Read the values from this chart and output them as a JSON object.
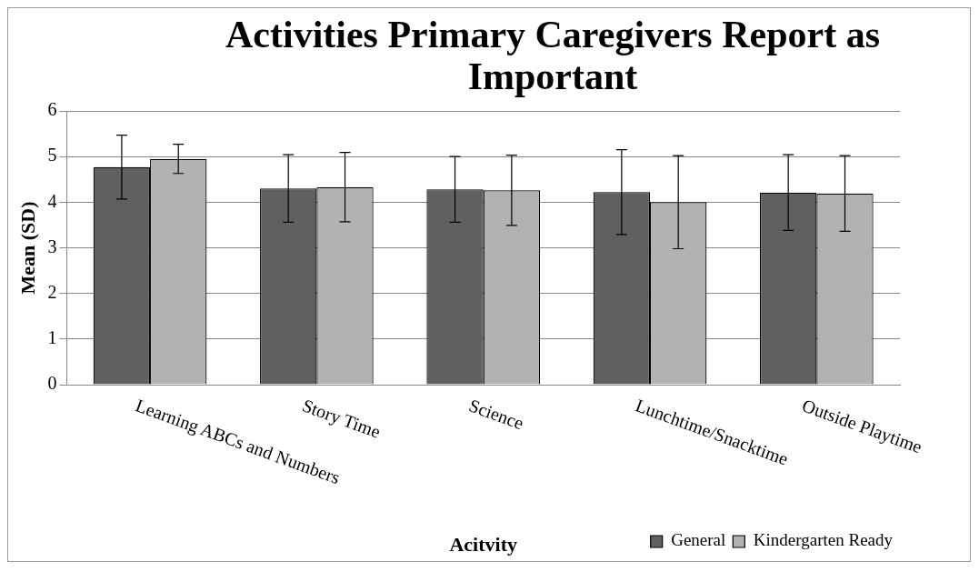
{
  "chart_data": {
    "type": "bar",
    "title": "Activities Primary Caregivers Report as Important",
    "xlabel": "Acitvity",
    "ylabel": "Mean (SD)",
    "categories": [
      "Learning ABCs and Numbers",
      "Story Time",
      "Science",
      "Lunchtime/Snacktime",
      "Outside Playtime"
    ],
    "series": [
      {
        "name": "General",
        "color": "#606060",
        "values": [
          4.77,
          4.3,
          4.28,
          4.22,
          4.21
        ],
        "errors": [
          0.7,
          0.74,
          0.72,
          0.93,
          0.83
        ]
      },
      {
        "name": "Kindergarten Ready",
        "color": "#b2b2b2",
        "values": [
          4.95,
          4.33,
          4.26,
          4.0,
          4.19
        ],
        "errors": [
          0.32,
          0.76,
          0.77,
          1.02,
          0.83
        ]
      }
    ],
    "ylim": [
      0,
      6
    ],
    "yticks": [
      0,
      1,
      2,
      3,
      4,
      5,
      6
    ],
    "grid": "y",
    "legend": "bottom right"
  }
}
